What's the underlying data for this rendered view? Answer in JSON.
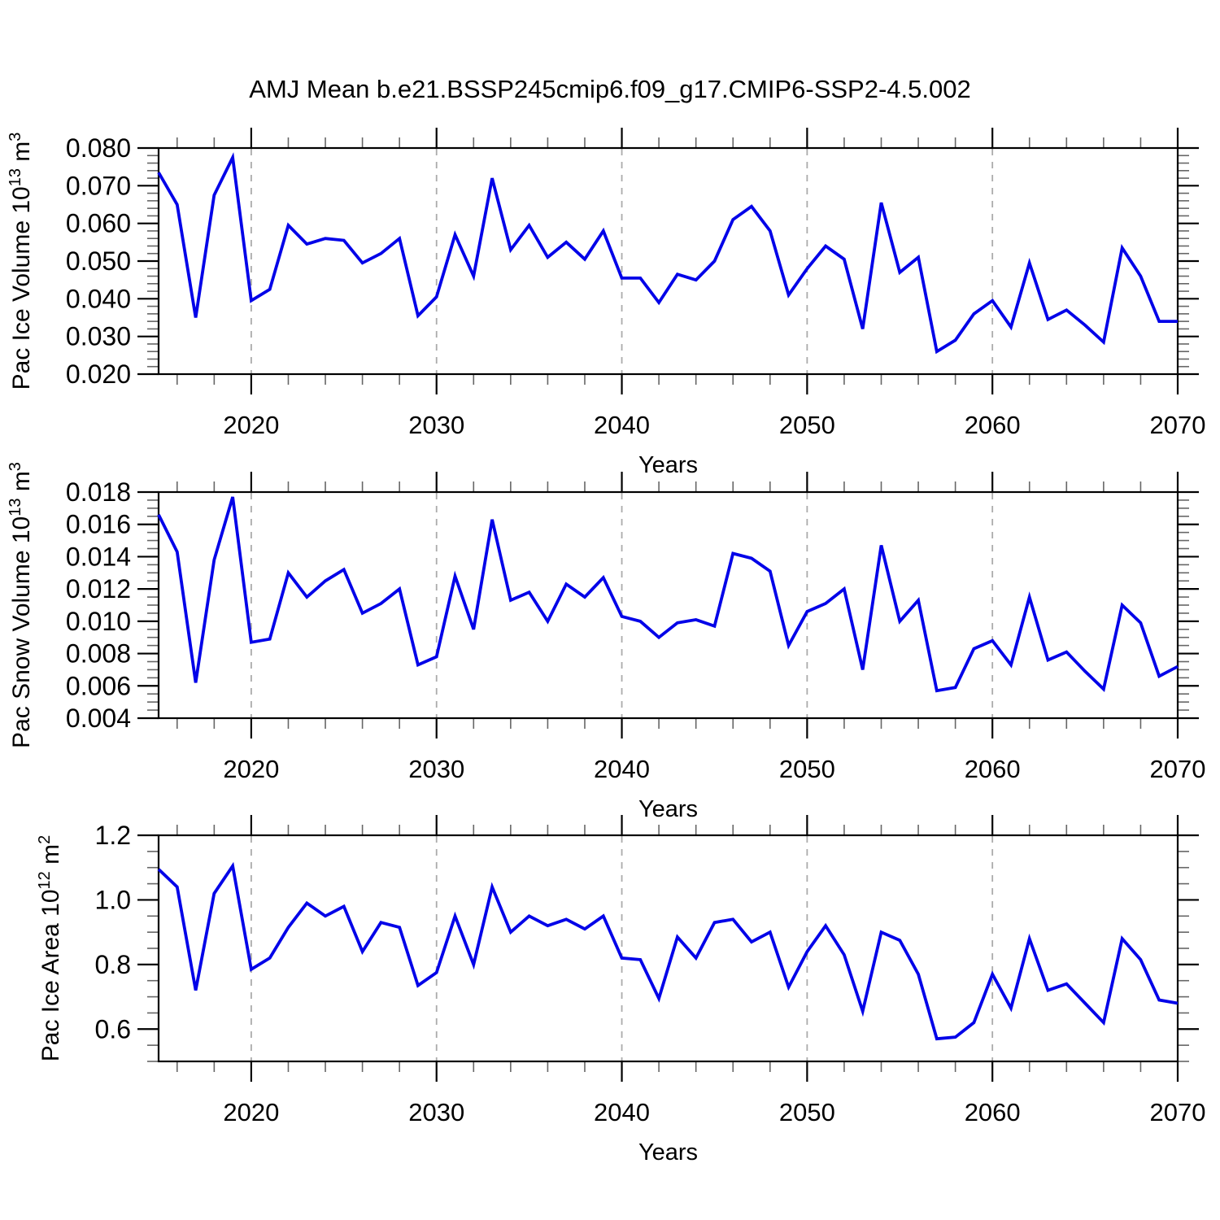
{
  "title": "AMJ Mean b.e21.BSSP245cmip6.f09_g17.CMIP6-SSP2-4.5.002",
  "line_color": "#0202e8",
  "gridline_color": "#ababab",
  "x_axis": {
    "label": "Years",
    "range": [
      2015,
      2070
    ],
    "major_ticks": [
      2020,
      2030,
      2040,
      2050,
      2060,
      2070
    ],
    "minor_step_years": 2,
    "gridlines_at": [
      2020,
      2030,
      2040,
      2050,
      2060
    ]
  },
  "years": [
    2015,
    2016,
    2017,
    2018,
    2019,
    2020,
    2021,
    2022,
    2023,
    2024,
    2025,
    2026,
    2027,
    2028,
    2029,
    2030,
    2031,
    2032,
    2033,
    2034,
    2035,
    2036,
    2037,
    2038,
    2039,
    2040,
    2041,
    2042,
    2043,
    2044,
    2045,
    2046,
    2047,
    2048,
    2049,
    2050,
    2051,
    2052,
    2053,
    2054,
    2055,
    2056,
    2057,
    2058,
    2059,
    2060,
    2061,
    2062,
    2063,
    2064,
    2065,
    2066,
    2067,
    2068,
    2069,
    2070
  ],
  "chart_data": [
    {
      "type": "line",
      "name": "pac-ice-volume",
      "ylabel": "Pac Ice Volume 10^13 m^3",
      "ylabel_rich": [
        [
          "t",
          "Pac Ice Volume 10"
        ],
        [
          "s",
          "13"
        ],
        [
          "t",
          " m"
        ],
        [
          "s",
          "3"
        ]
      ],
      "xlabel": "Years",
      "ylim": [
        0.02,
        0.08
      ],
      "ytick_major": 0.01,
      "ytick_minor": 0.002,
      "ytick_decimals": 3,
      "values": [
        0.0735,
        0.065,
        0.035,
        0.0675,
        0.0775,
        0.0395,
        0.0425,
        0.0595,
        0.0545,
        0.056,
        0.0555,
        0.0495,
        0.052,
        0.056,
        0.0355,
        0.0405,
        0.057,
        0.046,
        0.072,
        0.053,
        0.0595,
        0.051,
        0.055,
        0.0505,
        0.058,
        0.0455,
        0.0455,
        0.039,
        0.0465,
        0.045,
        0.05,
        0.061,
        0.0645,
        0.058,
        0.041,
        0.048,
        0.054,
        0.0505,
        0.032,
        0.0655,
        0.047,
        0.051,
        0.026,
        0.029,
        0.036,
        0.0395,
        0.0325,
        0.0495,
        0.0345,
        0.037,
        0.033,
        0.0285,
        0.0535,
        0.046,
        0.034,
        0.034
      ]
    },
    {
      "type": "line",
      "name": "pac-snow-volume",
      "ylabel": "Pac Snow Volume 10^13 m^3",
      "ylabel_rich": [
        [
          "t",
          "Pac Snow Volume 10"
        ],
        [
          "s",
          "13"
        ],
        [
          "t",
          " m"
        ],
        [
          "s",
          "3"
        ]
      ],
      "xlabel": "Years",
      "ylim": [
        0.004,
        0.018
      ],
      "ytick_major": 0.002,
      "ytick_minor": 0.0005,
      "ytick_decimals": 3,
      "values": [
        0.0166,
        0.0143,
        0.0062,
        0.0138,
        0.0177,
        0.0087,
        0.0089,
        0.013,
        0.0115,
        0.0125,
        0.0132,
        0.0105,
        0.0111,
        0.012,
        0.0073,
        0.0078,
        0.0128,
        0.0095,
        0.0163,
        0.0113,
        0.0118,
        0.01,
        0.0123,
        0.0115,
        0.0127,
        0.0103,
        0.01,
        0.009,
        0.0099,
        0.0101,
        0.0097,
        0.0142,
        0.0139,
        0.0131,
        0.0085,
        0.0106,
        0.0111,
        0.012,
        0.007,
        0.0147,
        0.01,
        0.0113,
        0.0057,
        0.0059,
        0.0083,
        0.0088,
        0.0073,
        0.0115,
        0.0076,
        0.0081,
        0.0069,
        0.0058,
        0.011,
        0.0099,
        0.0066,
        0.0072
      ]
    },
    {
      "type": "line",
      "name": "pac-ice-area",
      "ylabel": "Pac Ice Area 10^12 m^2",
      "ylabel_rich": [
        [
          "t",
          "Pac Ice Area 10"
        ],
        [
          "s",
          "12"
        ],
        [
          "t",
          " m"
        ],
        [
          "s",
          "2"
        ]
      ],
      "xlabel": "Years",
      "ylim": [
        0.5,
        1.2
      ],
      "ytick_major": 0.2,
      "ytick_minor": 0.05,
      "ytick_decimals": 1,
      "values": [
        1.095,
        1.04,
        0.72,
        1.02,
        1.105,
        0.785,
        0.82,
        0.915,
        0.99,
        0.95,
        0.98,
        0.84,
        0.93,
        0.915,
        0.735,
        0.775,
        0.95,
        0.8,
        1.04,
        0.9,
        0.95,
        0.92,
        0.94,
        0.91,
        0.95,
        0.82,
        0.815,
        0.695,
        0.885,
        0.82,
        0.93,
        0.94,
        0.87,
        0.9,
        0.73,
        0.84,
        0.92,
        0.83,
        0.655,
        0.9,
        0.875,
        0.77,
        0.57,
        0.575,
        0.62,
        0.77,
        0.665,
        0.88,
        0.72,
        0.74,
        0.68,
        0.62,
        0.88,
        0.815,
        0.69,
        0.68
      ]
    }
  ]
}
